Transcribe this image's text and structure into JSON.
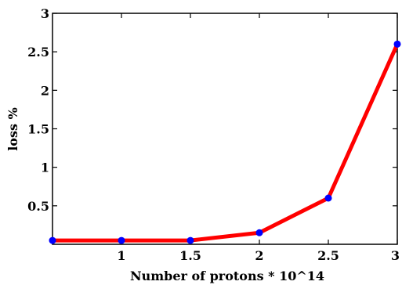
{
  "chart_data": {
    "type": "line",
    "title": "",
    "xlabel": "Number of protons * 10^14",
    "ylabel": "loss %",
    "xlim": [
      0.5,
      3
    ],
    "ylim": [
      0,
      3
    ],
    "x_ticks": [
      1,
      1.5,
      2,
      2.5,
      3
    ],
    "x_tick_labels": [
      "1",
      "1.5",
      "2",
      "2.5",
      "3"
    ],
    "y_ticks": [
      0.5,
      1,
      1.5,
      2,
      2.5,
      3
    ],
    "y_tick_labels": [
      "0.5",
      "1",
      "1.5",
      "2",
      "2.5",
      "3"
    ],
    "grid": false,
    "series": [
      {
        "x": [
          0.5,
          1,
          1.5,
          2,
          2.5,
          3
        ],
        "y": [
          0.05,
          0.05,
          0.05,
          0.15,
          0.6,
          2.6
        ],
        "line_color": "#ff0000",
        "marker_color": "#0000ff"
      }
    ]
  }
}
